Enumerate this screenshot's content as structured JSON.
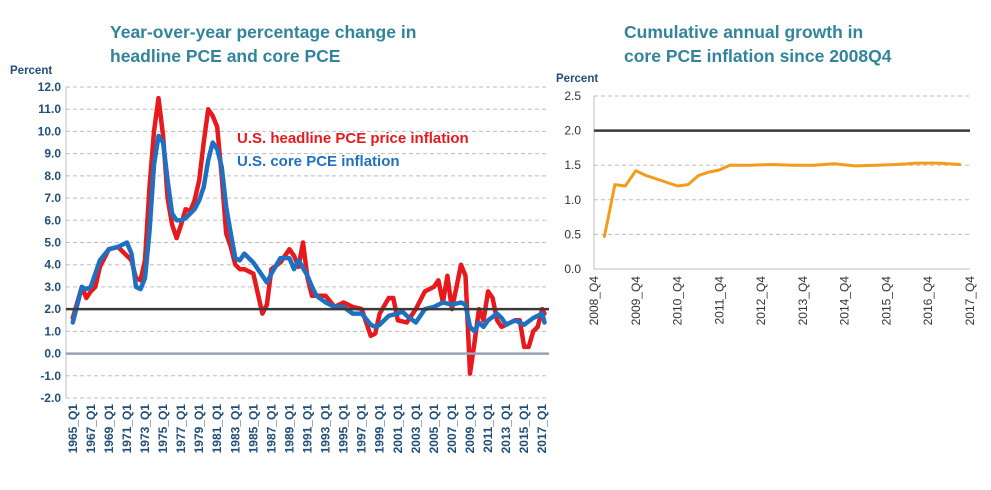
{
  "chart_data": [
    {
      "type": "line",
      "title_lines": [
        "Year-over-year percentage change in",
        "headline PCE and core PCE"
      ],
      "ylabel": "Percent",
      "ylim": [
        -2.0,
        12.0
      ],
      "yticks": [
        "-2.0",
        "-1.0",
        "0.0",
        "1.0",
        "2.0",
        "3.0",
        "4.0",
        "5.0",
        "6.0",
        "7.0",
        "8.0",
        "9.0",
        "10.0",
        "11.0",
        "12.0"
      ],
      "xticks": [
        "1965_Q1",
        "1967_Q1",
        "1969_Q1",
        "1971_Q1",
        "1973_Q1",
        "1975_Q1",
        "1977_Q1",
        "1979_Q1",
        "1981_Q1",
        "1983_Q1",
        "1985_Q1",
        "1987_Q1",
        "1989_Q1",
        "1991_Q1",
        "1993_Q1",
        "1995_Q1",
        "1997_Q1",
        "1999_Q1",
        "2001_Q1",
        "2003_Q1",
        "2005_Q1",
        "2007_Q1",
        "2009_Q1",
        "2011_Q1",
        "2013_Q1",
        "2015_Q1",
        "2017_Q1"
      ],
      "grid": true,
      "reference_lines": [
        2.0,
        0.0
      ],
      "legend": [
        "U.S. headline PCE price inflation",
        "U.S. core PCE inflation"
      ],
      "series": [
        {
          "name": "U.S. headline PCE price inflation",
          "color": "#e8191d",
          "x": [
            1965.0,
            1966.0,
            1966.5,
            1967.0,
            1967.5,
            1968.0,
            1969.0,
            1970.0,
            1971.0,
            1971.5,
            1972.0,
            1972.5,
            1973.0,
            1973.5,
            1974.0,
            1974.5,
            1975.0,
            1975.5,
            1976.0,
            1976.5,
            1977.0,
            1977.5,
            1978.0,
            1978.5,
            1979.0,
            1979.5,
            1980.0,
            1980.5,
            1981.0,
            1981.5,
            1982.0,
            1982.5,
            1983.0,
            1983.5,
            1984.0,
            1985.0,
            1986.0,
            1986.5,
            1987.0,
            1988.0,
            1989.0,
            1989.5,
            1990.0,
            1990.5,
            1991.0,
            1991.5,
            1992.0,
            1993.0,
            1994.0,
            1995.0,
            1996.0,
            1997.0,
            1998.0,
            1998.5,
            1999.0,
            2000.0,
            2000.5,
            2001.0,
            2002.0,
            2003.0,
            2004.0,
            2005.0,
            2005.5,
            2006.0,
            2006.5,
            2007.0,
            2007.5,
            2008.0,
            2008.5,
            2009.0,
            2009.5,
            2010.0,
            2010.5,
            2011.0,
            2011.5,
            2012.0,
            2012.5,
            2013.0,
            2014.0,
            2014.5,
            2015.0,
            2015.5,
            2016.0,
            2016.5,
            2017.0,
            2017.25
          ],
          "values": [
            1.6,
            3.0,
            2.5,
            2.8,
            3.0,
            3.9,
            4.7,
            4.8,
            4.4,
            4.2,
            3.4,
            3.3,
            4.2,
            7.5,
            10.0,
            11.5,
            9.8,
            7.0,
            5.8,
            5.2,
            5.8,
            6.5,
            6.4,
            6.9,
            7.8,
            9.5,
            11.0,
            10.7,
            10.2,
            8.0,
            5.4,
            4.8,
            4.0,
            3.8,
            3.8,
            3.6,
            1.8,
            2.2,
            3.8,
            4.1,
            4.7,
            4.4,
            3.9,
            5.0,
            3.4,
            2.6,
            2.6,
            2.6,
            2.1,
            2.3,
            2.1,
            2.0,
            0.8,
            0.9,
            1.8,
            2.5,
            2.5,
            1.5,
            1.4,
            2.0,
            2.8,
            3.0,
            3.3,
            2.3,
            3.5,
            2.0,
            3.0,
            4.0,
            3.5,
            -0.9,
            0.5,
            2.0,
            1.5,
            2.8,
            2.5,
            1.5,
            1.2,
            1.3,
            1.5,
            1.5,
            0.3,
            0.3,
            1.0,
            1.2,
            2.0,
            1.8
          ]
        },
        {
          "name": "U.S. core PCE inflation",
          "color": "#1f70c1",
          "x": [
            1965.0,
            1966.0,
            1966.5,
            1967.0,
            1968.0,
            1969.0,
            1970.0,
            1971.0,
            1971.5,
            1972.0,
            1972.5,
            1973.0,
            1973.5,
            1974.0,
            1974.5,
            1975.0,
            1975.5,
            1976.0,
            1976.5,
            1977.0,
            1977.5,
            1978.0,
            1978.5,
            1979.0,
            1979.5,
            1980.0,
            1980.5,
            1981.0,
            1981.5,
            1982.0,
            1982.5,
            1983.0,
            1983.5,
            1984.0,
            1985.0,
            1986.0,
            1986.5,
            1987.0,
            1988.0,
            1989.0,
            1989.5,
            1990.0,
            1991.0,
            1991.5,
            1992.0,
            1993.0,
            1994.0,
            1995.0,
            1996.0,
            1997.0,
            1998.0,
            1998.5,
            1999.0,
            2000.0,
            2001.0,
            2001.5,
            2002.0,
            2003.0,
            2004.0,
            2005.0,
            2006.0,
            2007.0,
            2008.0,
            2008.5,
            2009.0,
            2009.5,
            2010.0,
            2010.5,
            2011.0,
            2012.0,
            2012.5,
            2013.0,
            2014.0,
            2015.0,
            2016.0,
            2016.5,
            2017.0,
            2017.25
          ],
          "values": [
            1.4,
            3.0,
            2.9,
            3.0,
            4.2,
            4.7,
            4.8,
            5.0,
            4.5,
            3.0,
            2.9,
            3.4,
            5.5,
            8.5,
            9.8,
            9.5,
            7.8,
            6.3,
            6.0,
            6.0,
            6.1,
            6.3,
            6.5,
            6.9,
            7.5,
            8.7,
            9.5,
            9.2,
            8.4,
            6.6,
            5.4,
            4.3,
            4.2,
            4.5,
            4.1,
            3.5,
            3.2,
            3.6,
            4.3,
            4.3,
            3.8,
            4.2,
            3.5,
            3.0,
            2.6,
            2.3,
            2.1,
            2.1,
            1.8,
            1.8,
            1.3,
            1.2,
            1.3,
            1.7,
            1.8,
            1.9,
            1.7,
            1.4,
            2.0,
            2.1,
            2.3,
            2.2,
            2.3,
            2.2,
            1.2,
            1.0,
            1.4,
            1.2,
            1.5,
            1.8,
            1.6,
            1.3,
            1.5,
            1.3,
            1.6,
            1.7,
            1.8,
            1.4
          ]
        }
      ]
    },
    {
      "type": "line",
      "title_lines": [
        "Cumulative annual growth in",
        "core PCE inflation since 2008Q4"
      ],
      "ylabel": "Percent",
      "ylim": [
        0.0,
        2.5
      ],
      "yticks": [
        "0.0",
        "0.5",
        "1.0",
        "1.5",
        "2.0",
        "2.5"
      ],
      "xticks": [
        "2008_Q4",
        "2009_Q4",
        "2010_Q4",
        "2011_Q4",
        "2012_Q4",
        "2013_Q4",
        "2014_Q4",
        "2015_Q4",
        "2016_Q4",
        "2017_Q4"
      ],
      "grid": true,
      "reference_lines": [
        2.0
      ],
      "series": [
        {
          "color": "#f39c1b",
          "x": [
            2009.0,
            2009.25,
            2009.5,
            2009.75,
            2010.0,
            2010.25,
            2010.5,
            2010.75,
            2011.0,
            2011.25,
            2011.5,
            2011.75,
            2012.0,
            2012.5,
            2013.0,
            2013.5,
            2014.0,
            2014.5,
            2015.0,
            2015.5,
            2016.0,
            2016.5,
            2017.0,
            2017.5
          ],
          "values": [
            0.47,
            1.22,
            1.2,
            1.42,
            1.35,
            1.3,
            1.25,
            1.2,
            1.22,
            1.35,
            1.4,
            1.43,
            1.5,
            1.5,
            1.51,
            1.5,
            1.5,
            1.52,
            1.49,
            1.5,
            1.51,
            1.53,
            1.53,
            1.51
          ]
        }
      ]
    }
  ]
}
